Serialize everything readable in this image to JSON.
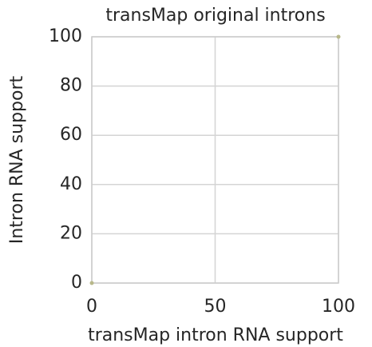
{
  "chart_data": {
    "type": "scatter",
    "title": "transMap original introns",
    "x_label": "transMap intron RNA support",
    "y_label": "Intron RNA support",
    "series": [
      {
        "color": "#b8b88a",
        "x": [
          0,
          100
        ],
        "values": [
          0,
          100
        ]
      }
    ],
    "xlim": [
      0,
      100
    ],
    "xticks": [
      0,
      50,
      100
    ],
    "ylim": [
      0,
      100
    ],
    "yticks": [
      0,
      20,
      40,
      60,
      80,
      100
    ],
    "grid": true
  }
}
